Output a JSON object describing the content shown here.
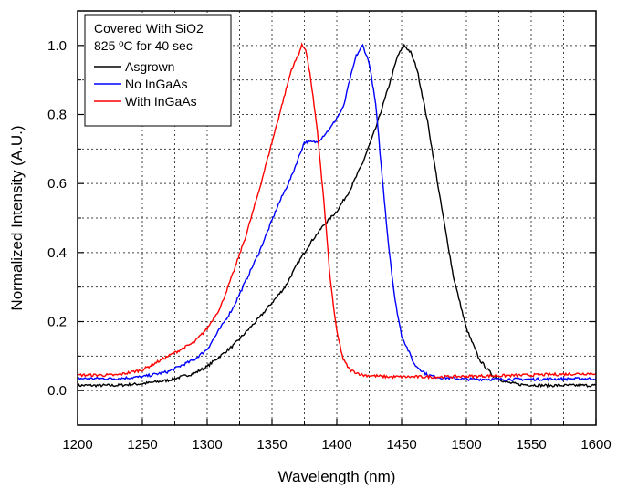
{
  "chart_data": {
    "type": "line",
    "title": "",
    "xlabel": "Wavelength (nm)",
    "ylabel": "Normalized Intensity (A.U.)",
    "xlim": [
      1200,
      1600
    ],
    "ylim": [
      -0.1,
      1.1
    ],
    "x_ticks": [
      1200,
      1250,
      1300,
      1350,
      1400,
      1450,
      1500,
      1550,
      1600
    ],
    "x_tick_labels": [
      "1200",
      "1250",
      "1300",
      "1350",
      "1400",
      "1450",
      "1500",
      "1550",
      "1600"
    ],
    "y_ticks": [
      0.0,
      0.2,
      0.4,
      0.6,
      0.8,
      1.0
    ],
    "y_tick_labels": [
      "0.0",
      "0.2",
      "0.4",
      "0.6",
      "0.8",
      "1.0"
    ],
    "grid": true,
    "legend": {
      "placement": "top-left",
      "title_lines": [
        "Covered With SiO2",
        "825 ºC for 40 sec"
      ]
    },
    "series": [
      {
        "name": "Asgrown",
        "color": "#000000",
        "x": [
          1200,
          1230,
          1250,
          1270,
          1290,
          1300,
          1320,
          1340,
          1360,
          1370,
          1380,
          1390,
          1400,
          1410,
          1420,
          1430,
          1440,
          1447,
          1452,
          1457,
          1462,
          1470,
          1480,
          1490,
          1500,
          1510,
          1520,
          1530,
          1540,
          1560,
          1600
        ],
        "y": [
          0.015,
          0.015,
          0.02,
          0.03,
          0.05,
          0.07,
          0.13,
          0.21,
          0.3,
          0.37,
          0.43,
          0.48,
          0.52,
          0.58,
          0.66,
          0.76,
          0.88,
          0.97,
          1.0,
          0.98,
          0.93,
          0.78,
          0.55,
          0.33,
          0.18,
          0.09,
          0.045,
          0.025,
          0.018,
          0.015,
          0.015
        ]
      },
      {
        "name": "No InGaAs",
        "color": "#0000ff",
        "x": [
          1200,
          1230,
          1250,
          1270,
          1290,
          1300,
          1320,
          1340,
          1355,
          1365,
          1375,
          1385,
          1395,
          1400,
          1405,
          1410,
          1415,
          1420,
          1425,
          1430,
          1435,
          1440,
          1445,
          1450,
          1460,
          1470,
          1480,
          1500,
          1550,
          1600
        ],
        "y": [
          0.035,
          0.035,
          0.04,
          0.055,
          0.09,
          0.12,
          0.24,
          0.4,
          0.54,
          0.62,
          0.72,
          0.72,
          0.76,
          0.79,
          0.82,
          0.9,
          0.97,
          1.0,
          0.95,
          0.83,
          0.62,
          0.42,
          0.26,
          0.16,
          0.075,
          0.045,
          0.038,
          0.033,
          0.033,
          0.035
        ]
      },
      {
        "name": "With InGaAs",
        "color": "#ff0000",
        "x": [
          1200,
          1230,
          1250,
          1260,
          1270,
          1280,
          1290,
          1300,
          1310,
          1320,
          1330,
          1340,
          1350,
          1360,
          1365,
          1370,
          1373,
          1376,
          1380,
          1385,
          1390,
          1395,
          1400,
          1405,
          1410,
          1420,
          1440,
          1480,
          1550,
          1600
        ],
        "y": [
          0.045,
          0.045,
          0.06,
          0.08,
          0.1,
          0.12,
          0.14,
          0.18,
          0.24,
          0.34,
          0.45,
          0.58,
          0.72,
          0.86,
          0.93,
          0.97,
          1.0,
          0.99,
          0.9,
          0.75,
          0.55,
          0.32,
          0.17,
          0.09,
          0.06,
          0.045,
          0.04,
          0.04,
          0.045,
          0.05
        ]
      }
    ]
  }
}
